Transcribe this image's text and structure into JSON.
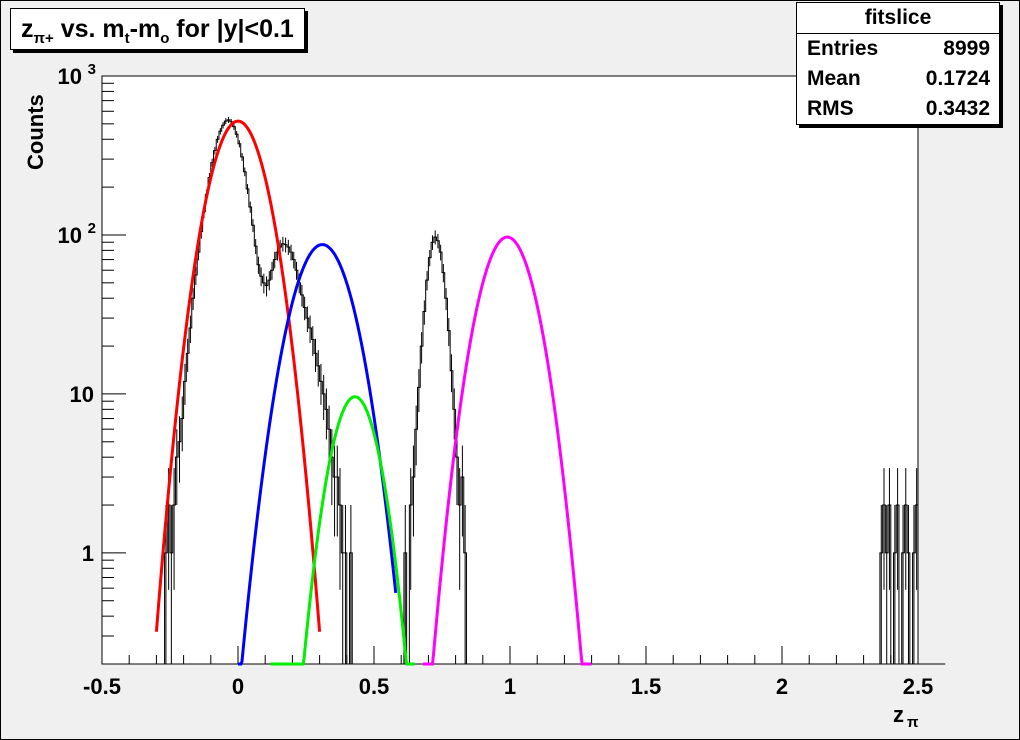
{
  "chart_data": {
    "type": "line",
    "title": {
      "main": "z",
      "main_sub": "π+",
      "mid": " vs. m",
      "mid_sub": "t",
      "dash": "-m",
      "end_sub": "o",
      "tail": " for |y|<0.1"
    },
    "xlabel": "z",
    "xlabel_sub": "π",
    "ylabel": "Counts",
    "xlim": [
      -0.5,
      2.5
    ],
    "ylim": [
      0.2,
      1000
    ],
    "log_y": true,
    "grid": false,
    "x_ticks": [
      {
        "value": -0.5,
        "label": "-0.5"
      },
      {
        "value": 0,
        "label": "0"
      },
      {
        "value": 0.5,
        "label": "0.5"
      },
      {
        "value": 1,
        "label": "1"
      },
      {
        "value": 1.5,
        "label": "1.5"
      },
      {
        "value": 2,
        "label": "2"
      },
      {
        "value": 2.5,
        "label": "2.5"
      }
    ],
    "y_ticks": [
      {
        "value": 1,
        "label": "1"
      },
      {
        "value": 10,
        "label": "10"
      },
      {
        "value": 100,
        "label": "10",
        "exp": "2"
      },
      {
        "value": 1000,
        "label": "10",
        "exp": "3"
      }
    ],
    "stats": {
      "name": "fitslice",
      "rows": [
        {
          "label": "Entries",
          "value": "8999"
        },
        {
          "label": "Mean",
          "value": "0.1724"
        },
        {
          "label": "RMS",
          "value": "0.3432"
        }
      ]
    },
    "fits": [
      {
        "color": "#ff0000",
        "amp": 520,
        "mean": 0.0,
        "sigma": 0.078,
        "range": [
          -0.3,
          0.3
        ]
      },
      {
        "color": "#0000ff",
        "amp": 87,
        "mean": 0.31,
        "sigma": 0.085,
        "range": [
          0.0,
          0.58
        ]
      },
      {
        "color": "#00ee00",
        "amp": 9.6,
        "mean": 0.43,
        "sigma": 0.068,
        "range": [
          0.12,
          0.65
        ]
      },
      {
        "color": "#ff00ff",
        "amp": 97,
        "mean": 0.99,
        "sigma": 0.078,
        "range": [
          0.68,
          1.3
        ]
      }
    ],
    "histogram": {
      "x_start": -0.3,
      "bin_width": 0.01,
      "counts": [
        0,
        0,
        0,
        1,
        2,
        1,
        2,
        4,
        5,
        7,
        12,
        18,
        26,
        40,
        56,
        78,
        105,
        140,
        180,
        230,
        285,
        340,
        400,
        450,
        490,
        520,
        530,
        515,
        480,
        430,
        375,
        310,
        250,
        195,
        150,
        115,
        85,
        65,
        55,
        50,
        48,
        52,
        60,
        70,
        78,
        84,
        88,
        87,
        84,
        78,
        70,
        60,
        50,
        42,
        35,
        30,
        26,
        22,
        18,
        15,
        12,
        10,
        8,
        6,
        4,
        3,
        3,
        2,
        1,
        1,
        0,
        1,
        0,
        0,
        0,
        0,
        0,
        0,
        0,
        0,
        0,
        0,
        0,
        0,
        0,
        0,
        0,
        0,
        0,
        0,
        0,
        1,
        0,
        2,
        3,
        6,
        11,
        20,
        33,
        52,
        72,
        90,
        97,
        92,
        78,
        58,
        40,
        25,
        14,
        8,
        4,
        2,
        3,
        1,
        0,
        0,
        0,
        0,
        0,
        0,
        0,
        0,
        0,
        0,
        0,
        0,
        0,
        0,
        0,
        0,
        0,
        0,
        0,
        0,
        0,
        0,
        0,
        0,
        0,
        0,
        0,
        0,
        0,
        0,
        0,
        0,
        0,
        0,
        0,
        0,
        0,
        0,
        0,
        0,
        0,
        0,
        0,
        0,
        0,
        0,
        0,
        0,
        0,
        0,
        0,
        0,
        0,
        0,
        0,
        0,
        0,
        0,
        0,
        0,
        0,
        0,
        0,
        0,
        0,
        0,
        0,
        0,
        0,
        0,
        0,
        0,
        0,
        0,
        0,
        0,
        0,
        0,
        0,
        0,
        0,
        0,
        0,
        0,
        0,
        0,
        0,
        0,
        0,
        0,
        0,
        0,
        0,
        0,
        0,
        0,
        0,
        0,
        0,
        0,
        0,
        0,
        0,
        0,
        0,
        0,
        0,
        0,
        0,
        0,
        0,
        0,
        0,
        0,
        0,
        0,
        0,
        0,
        0,
        0,
        0,
        0,
        0,
        0,
        0,
        0,
        0,
        0,
        0,
        0,
        0,
        0,
        0,
        0,
        0,
        0,
        0,
        0,
        0,
        0,
        0,
        0,
        0,
        0,
        0,
        0,
        0,
        0,
        0,
        0,
        0,
        0,
        1,
        2,
        1,
        2,
        0,
        1,
        2,
        0,
        1,
        2,
        1,
        0,
        1,
        2,
        0,
        0,
        0,
        0,
        0,
        0,
        0,
        0,
        0,
        0
      ]
    }
  }
}
